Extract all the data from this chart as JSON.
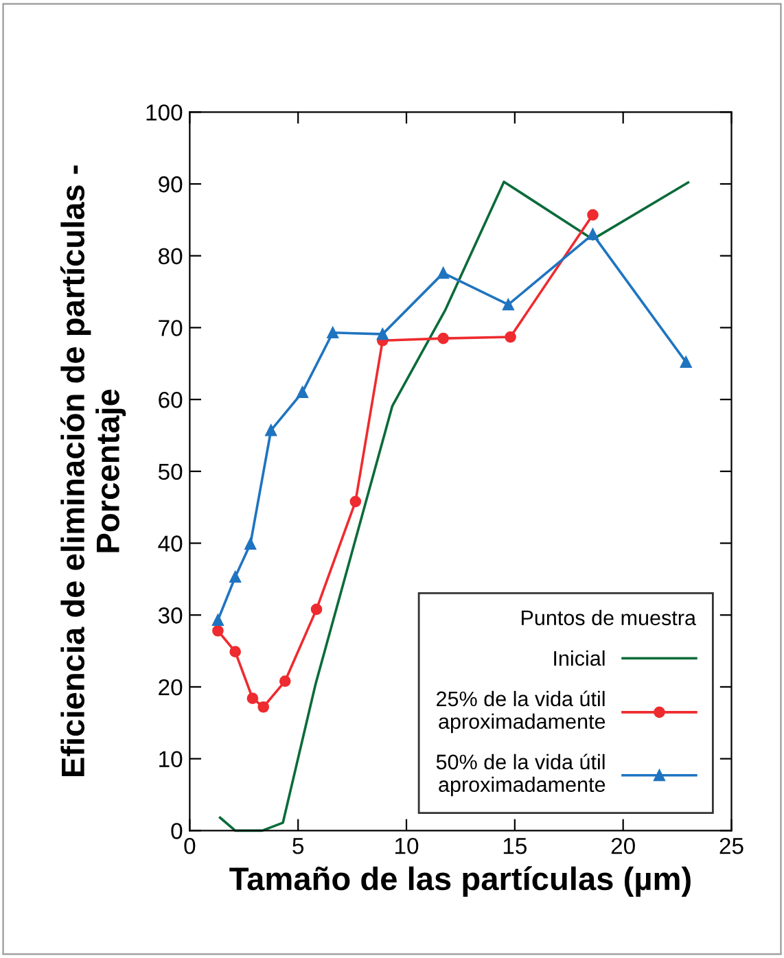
{
  "chart_data": {
    "type": "line",
    "xlabel": "Tamaño de las partículas (µm)",
    "ylabel": "Eficiencia de eliminación de partículas -\nPorcentaje",
    "legend_title": "Puntos de muestra",
    "legend": "bottom right",
    "grid": false,
    "xlim": [
      0,
      25
    ],
    "xticks": [
      0,
      5,
      10,
      15,
      20,
      25
    ],
    "ylim": [
      0,
      100
    ],
    "yticks": [
      0,
      10,
      20,
      30,
      40,
      50,
      60,
      70,
      80,
      90,
      100
    ],
    "series": [
      {
        "name": "Inicial",
        "color": "#0b6b3a",
        "marker": "none",
        "x": [
          1.4,
          2.1,
          3.35,
          4.3,
          5.8,
          9.35,
          11.8,
          14.5,
          18.6,
          23.0
        ],
        "values": [
          1.8,
          0,
          0,
          1.1,
          20.3,
          59.1,
          72.5,
          90.3,
          82.3,
          90.2
        ]
      },
      {
        "name": "25% de la vida útil\naproximadamente",
        "color": "#ee2b2f",
        "marker": "circle",
        "x": [
          1.3,
          2.1,
          2.9,
          3.4,
          4.4,
          5.85,
          7.65,
          8.9,
          11.7,
          14.8,
          18.6
        ],
        "values": [
          27.8,
          24.9,
          18.4,
          17.2,
          20.8,
          30.8,
          45.8,
          68.2,
          68.5,
          68.7,
          85.7
        ]
      },
      {
        "name": "50% de la vida útil\naproximadamente",
        "color": "#1f74c0",
        "marker": "triangle",
        "x": [
          1.3,
          2.1,
          2.8,
          3.75,
          5.2,
          6.6,
          8.9,
          11.7,
          14.7,
          18.6,
          22.9
        ],
        "values": [
          29.3,
          35.3,
          39.9,
          55.7,
          61.0,
          69.3,
          69.1,
          77.6,
          73.2,
          83.0,
          65.2
        ]
      }
    ]
  }
}
